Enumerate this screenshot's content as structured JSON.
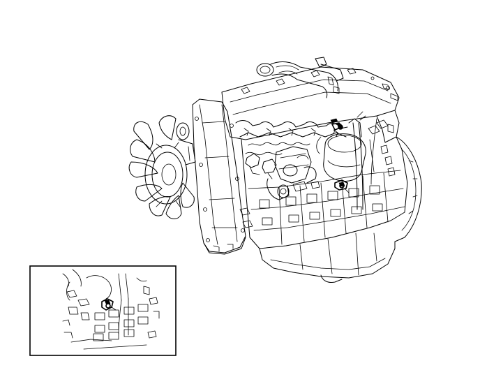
{
  "figure": {
    "subject": "engine-assembly-line-drawing",
    "inset": {
      "subject": "sensor-location-detail"
    },
    "callouts": [
      {
        "part": "upper-sensor"
      },
      {
        "part": "lower-sensor"
      },
      {
        "part": "inset-sensor"
      }
    ]
  },
  "colors": {
    "line": "#000000",
    "background": "#ffffff"
  }
}
